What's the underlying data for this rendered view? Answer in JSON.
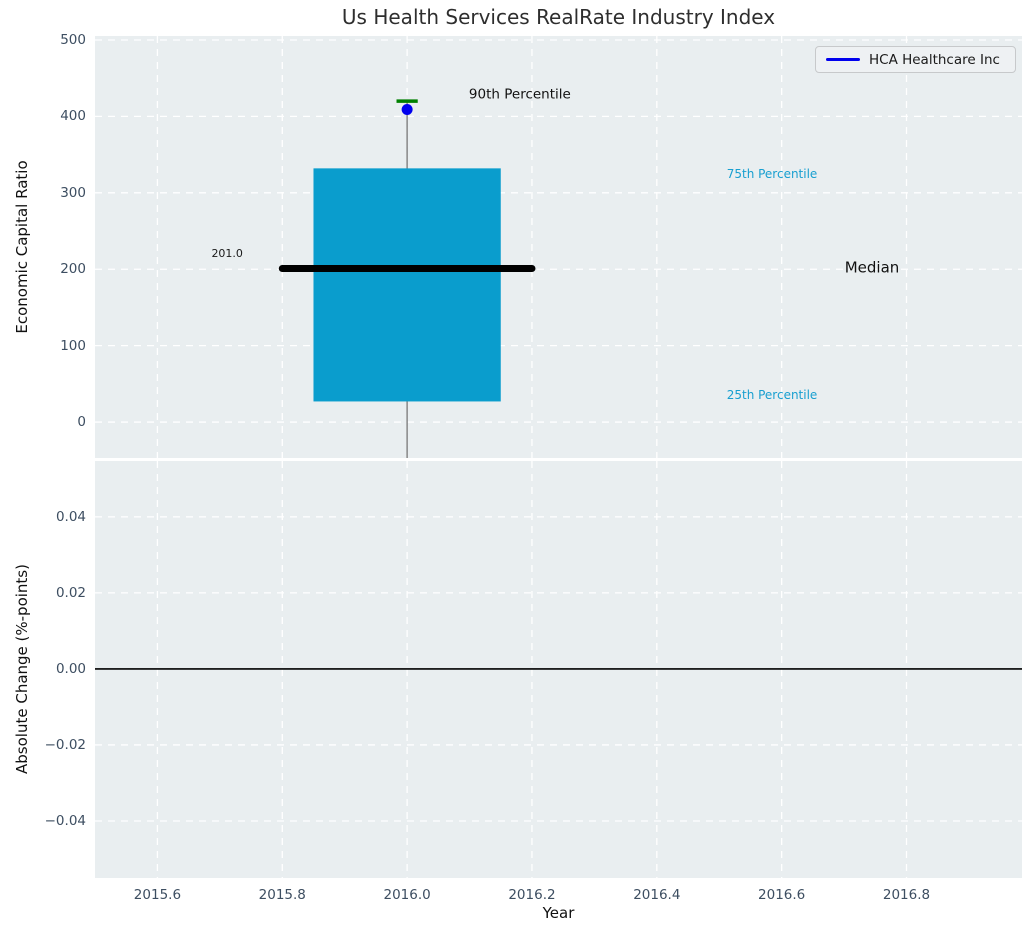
{
  "figure": {
    "title": "Us Health Services RealRate Industry Index",
    "xlabel": "Year"
  },
  "legend": {
    "label": "HCA Healthcare Inc"
  },
  "colors": {
    "box_fill": "#0a9dcd",
    "median_line": "#000000",
    "p90_tick": "#008000",
    "hca_marker": "#0000ee",
    "whisker": "#7f7f7f",
    "grid": "#ffffff",
    "zero_line": "#000000",
    "percentile_label": "#189fd0",
    "tick_label": "#3d4e61"
  },
  "chart_data": [
    {
      "name": "economic-capital-ratio",
      "type": "box",
      "title": "Us Health Services RealRate Industry Index",
      "xlabel": "Year",
      "ylabel": "Economic Capital Ratio",
      "xlim": [
        2015.5,
        2016.985
      ],
      "ylim": [
        -47,
        505.2
      ],
      "xticks": [
        2015.6,
        2015.8,
        2016.0,
        2016.2,
        2016.4,
        2016.6,
        2016.8
      ],
      "xtick_labels": [
        "2015.6",
        "2015.8",
        "2016.0",
        "2016.2",
        "2016.4",
        "2016.6",
        "2016.8"
      ],
      "yticks": [
        500,
        400,
        300,
        200,
        100,
        0
      ],
      "ytick_labels": [
        "500",
        "400",
        "300",
        "200",
        "100",
        "0"
      ],
      "grid": true,
      "legend": {
        "label": "HCA Healthcare Inc",
        "position": "upper right"
      },
      "box": {
        "x": 2016.0,
        "median": 201.0,
        "q1": 27,
        "q3": 332,
        "p90": 420,
        "box_halfwidth": 0.15,
        "median_halfwidth": 0.2,
        "p90_tick_halfwidth": 0.017,
        "whisker_extends_below_axis": true
      },
      "series": [
        {
          "name": "HCA Healthcare Inc",
          "x": [
            2016.0
          ],
          "y": [
            409
          ],
          "marker": "circle",
          "color": "#0000ee"
        }
      ],
      "annotations": [
        {
          "text": "201.0",
          "x": 2015.737,
          "y": 221,
          "align": "right",
          "size": 11,
          "color": "#1a1a1a"
        },
        {
          "text": "90th Percentile",
          "x": 2016.099,
          "y": 430,
          "align": "left",
          "size": 13.5,
          "color": "#111111"
        },
        {
          "text": "75th Percentile",
          "x": 2016.512,
          "y": 325,
          "align": "left",
          "size": 12,
          "color": "#189fd0"
        },
        {
          "text": "Median",
          "x": 2016.701,
          "y": 203,
          "align": "left",
          "size": 15,
          "color": "#111111"
        },
        {
          "text": "25th Percentile",
          "x": 2016.512,
          "y": 36,
          "align": "left",
          "size": 12,
          "color": "#189fd0"
        }
      ]
    },
    {
      "name": "absolute-change",
      "type": "line",
      "xlabel": "Year",
      "ylabel": "Absolute Change (%-points)",
      "xlim": [
        2015.5,
        2016.985
      ],
      "ylim": [
        -0.055,
        0.0547
      ],
      "xticks": [
        2015.6,
        2015.8,
        2016.0,
        2016.2,
        2016.4,
        2016.6,
        2016.8
      ],
      "xtick_labels": [
        "2015.6",
        "2015.8",
        "2016.0",
        "2016.2",
        "2016.4",
        "2016.6",
        "2016.8"
      ],
      "yticks": [
        0.04,
        0.02,
        0.0,
        -0.02,
        -0.04
      ],
      "ytick_labels": [
        "0.04",
        "0.02",
        "0.00",
        "−0.02",
        "−0.04"
      ],
      "grid": true,
      "zero_line": true,
      "series": []
    }
  ]
}
